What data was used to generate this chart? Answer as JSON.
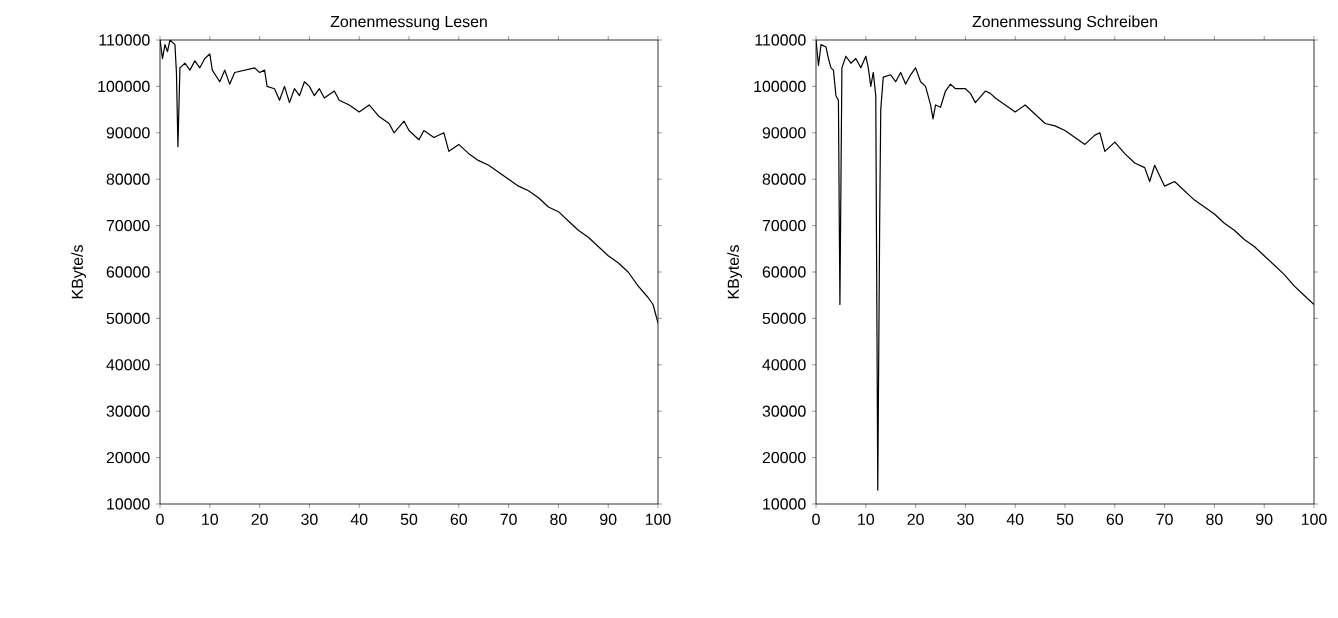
{
  "chart_data": [
    {
      "type": "line",
      "title": "Zonenmessung Lesen",
      "ylabel": "KByte/s",
      "xlim": [
        0,
        100
      ],
      "ylim": [
        10000,
        110000
      ],
      "xticks": [
        0,
        10,
        20,
        30,
        40,
        50,
        60,
        70,
        80,
        90,
        100
      ],
      "yticks": [
        10000,
        20000,
        30000,
        40000,
        50000,
        60000,
        70000,
        80000,
        90000,
        100000,
        110000
      ],
      "grid": false,
      "marker": "none",
      "line_style": "solid",
      "series": [
        {
          "color": "#000000",
          "x": [
            0,
            0.5,
            1,
            1.5,
            2,
            3,
            3.3,
            3.6,
            4,
            5,
            6,
            7,
            8,
            9,
            10,
            10.5,
            12,
            13,
            14,
            15,
            17,
            19,
            20,
            21,
            21.5,
            23,
            24,
            25,
            26,
            27,
            28,
            29,
            30,
            31,
            32,
            33,
            35,
            36,
            38,
            40,
            42,
            44,
            46,
            47,
            49,
            50,
            52,
            53,
            55,
            57,
            58,
            60,
            62,
            64,
            66,
            68,
            70,
            72,
            74,
            76,
            78,
            80,
            82,
            84,
            86,
            88,
            90,
            92,
            94,
            96,
            98,
            99,
            100
          ],
          "values": [
            110000,
            106000,
            109000,
            107500,
            110000,
            109000,
            103000,
            87000,
            104000,
            105000,
            103500,
            105500,
            104000,
            106000,
            107000,
            103500,
            101000,
            103500,
            100500,
            103000,
            103500,
            104000,
            103000,
            103500,
            100000,
            99500,
            97000,
            100000,
            96500,
            99500,
            98000,
            101000,
            100000,
            98000,
            99500,
            97500,
            99000,
            97000,
            96000,
            94500,
            96000,
            93500,
            92000,
            90000,
            92500,
            90500,
            88500,
            90500,
            89000,
            90000,
            86000,
            87500,
            85500,
            84000,
            83000,
            81500,
            80000,
            78500,
            77500,
            76000,
            74000,
            73000,
            71000,
            69000,
            67500,
            65500,
            63500,
            62000,
            60000,
            57000,
            54500,
            53000,
            49000
          ]
        }
      ]
    },
    {
      "type": "line",
      "title": "Zonenmessung Schreiben",
      "ylabel": "KByte/s",
      "xlim": [
        0,
        100
      ],
      "ylim": [
        10000,
        110000
      ],
      "xticks": [
        0,
        10,
        20,
        30,
        40,
        50,
        60,
        70,
        80,
        90,
        100
      ],
      "yticks": [
        10000,
        20000,
        30000,
        40000,
        50000,
        60000,
        70000,
        80000,
        90000,
        100000,
        110000
      ],
      "grid": false,
      "marker": "none",
      "line_style": "solid",
      "series": [
        {
          "color": "#000000",
          "x": [
            0,
            0.5,
            1,
            2,
            2.5,
            3,
            3.5,
            4,
            4.5,
            4.8,
            5.2,
            6,
            7,
            8,
            9,
            10,
            10.5,
            11,
            11.5,
            12,
            12.4,
            12.8,
            13,
            13.5,
            15,
            16,
            17,
            18,
            19,
            20,
            21,
            22,
            23,
            23.5,
            24,
            25,
            26,
            27,
            28,
            30,
            31,
            32,
            34,
            35,
            36,
            38,
            40,
            42,
            44,
            46,
            48,
            50,
            52,
            54,
            56,
            57,
            58,
            60,
            62,
            64,
            66,
            67,
            68,
            70,
            72,
            74,
            76,
            78,
            80,
            82,
            84,
            86,
            88,
            90,
            92,
            94,
            96,
            98,
            100
          ],
          "values": [
            110000,
            104500,
            109000,
            108500,
            106000,
            104000,
            103500,
            98000,
            97000,
            53000,
            104000,
            106500,
            105000,
            106000,
            104000,
            106500,
            104000,
            100000,
            103000,
            98000,
            13000,
            73000,
            95000,
            102000,
            102500,
            101000,
            103000,
            100500,
            102500,
            104000,
            101000,
            100000,
            96000,
            93000,
            96000,
            95500,
            99000,
            100500,
            99500,
            99500,
            98500,
            96500,
            99000,
            98500,
            97500,
            96000,
            94500,
            96000,
            94000,
            92000,
            91500,
            90500,
            89000,
            87500,
            89500,
            90000,
            86000,
            88000,
            85500,
            83500,
            82500,
            79500,
            83000,
            78500,
            79500,
            77500,
            75500,
            74000,
            72500,
            70500,
            69000,
            67000,
            65500,
            63500,
            61500,
            59500,
            57000,
            55000,
            53000
          ]
        }
      ]
    }
  ]
}
